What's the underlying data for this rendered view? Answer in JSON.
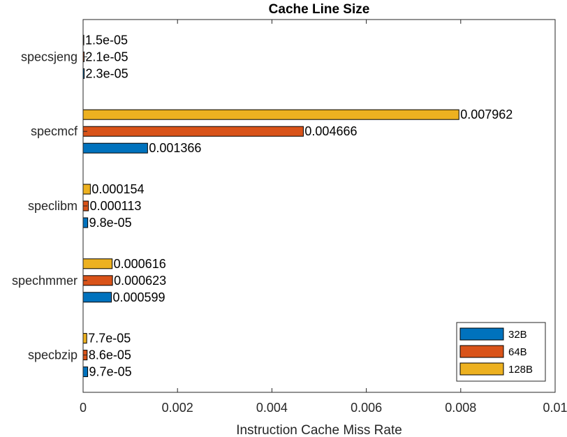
{
  "chart_data": {
    "type": "bar",
    "orientation": "horizontal",
    "title": "Cache Line Size",
    "xlabel": "Instruction Cache Miss Rate",
    "ylabel": "",
    "xlim": [
      0,
      0.01
    ],
    "x_ticks": [
      0,
      0.002,
      0.004,
      0.006,
      0.008,
      0.01
    ],
    "x_tick_labels": [
      "0",
      "0.002",
      "0.004",
      "0.006",
      "0.008",
      "0.01"
    ],
    "categories": [
      "specbzip",
      "spechmmer",
      "speclibm",
      "specmcf",
      "specsjeng"
    ],
    "series": [
      {
        "name": "32B",
        "color": "#0072BD",
        "values": [
          9.7e-05,
          0.000599,
          9.8e-05,
          0.001366,
          2.3e-05
        ],
        "labels": [
          "9.7e-05",
          "0.000599",
          "9.8e-05",
          "0.001366",
          "2.3e-05"
        ]
      },
      {
        "name": "64B",
        "color": "#D95319",
        "values": [
          8.6e-05,
          0.000623,
          0.000113,
          0.004666,
          2.1e-05
        ],
        "labels": [
          "8.6e-05",
          "0.000623",
          "0.000113",
          "0.004666",
          "2.1e-05"
        ]
      },
      {
        "name": "128B",
        "color": "#EDB120",
        "values": [
          7.7e-05,
          0.000616,
          0.000154,
          0.007962,
          1.5e-05
        ],
        "labels": [
          "7.7e-05",
          "0.000616",
          "0.000154",
          "0.007962",
          "1.5e-05"
        ]
      }
    ],
    "grid": false,
    "legend_position": "bottom-right"
  }
}
